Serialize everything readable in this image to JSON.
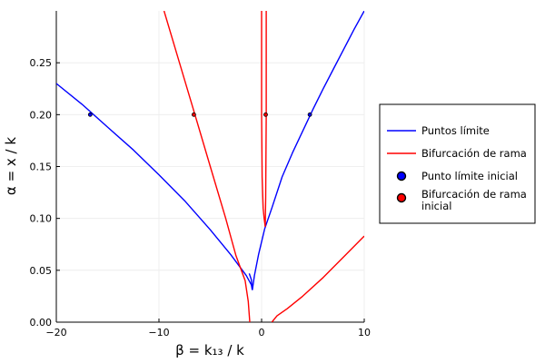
{
  "chart_data": {
    "type": "line",
    "title": "",
    "xlabel": "β = k₁₃ / k",
    "ylabel": "α = x / k",
    "xlim": [
      -20,
      10
    ],
    "ylim": [
      0,
      0.3
    ],
    "xticks": [
      -20,
      -10,
      0,
      10
    ],
    "xtick_labels": [
      "−20",
      "−10",
      "0",
      "10"
    ],
    "yticks": [
      0.0,
      0.05,
      0.1,
      0.15,
      0.2,
      0.25
    ],
    "ytick_labels": [
      "0.00",
      "0.05",
      "0.10",
      "0.15",
      "0.20",
      "0.25"
    ],
    "grid": true,
    "legend_position": "right",
    "series": [
      {
        "name": "Puntos límite",
        "kind": "line",
        "color": "#0000ff",
        "segments": [
          [
            [
              -20,
              0.23
            ],
            [
              -17.5,
              0.21
            ],
            [
              -15,
              0.188
            ],
            [
              -12.5,
              0.166
            ],
            [
              -10,
              0.142
            ],
            [
              -7.5,
              0.117
            ],
            [
              -5,
              0.089
            ],
            [
              -3,
              0.065
            ],
            [
              -1.5,
              0.045
            ],
            [
              -1,
              0.036
            ],
            [
              -0.9,
              0.031
            ]
          ],
          [
            [
              -0.9,
              0.031
            ],
            [
              -1.0,
              0.041
            ],
            [
              -1.2,
              0.047
            ]
          ],
          [
            [
              -0.9,
              0.031
            ],
            [
              -0.7,
              0.045
            ],
            [
              -0.3,
              0.065
            ],
            [
              0.3,
              0.09
            ],
            [
              1,
              0.11
            ],
            [
              2,
              0.14
            ],
            [
              3,
              0.163
            ],
            [
              4,
              0.184
            ],
            [
              5,
              0.205
            ],
            [
              6,
              0.225
            ],
            [
              7,
              0.244
            ],
            [
              8,
              0.263
            ],
            [
              9,
              0.282
            ],
            [
              10,
              0.3
            ]
          ]
        ]
      },
      {
        "name": "Bifurcación de rama",
        "kind": "line",
        "color": "#ff0000",
        "segments": [
          [
            [
              -9.5,
              0.3
            ],
            [
              -8.0,
              0.25
            ],
            [
              -6.5,
              0.2
            ],
            [
              -5.0,
              0.15
            ],
            [
              -3.5,
              0.1
            ],
            [
              -2.5,
              0.064
            ],
            [
              -1.6,
              0.04
            ],
            [
              -1.3,
              0.02
            ],
            [
              -1.15,
              0.0
            ]
          ],
          [
            [
              0.0,
              0.3
            ],
            [
              0.0,
              0.2
            ],
            [
              0.05,
              0.14
            ],
            [
              0.15,
              0.11
            ],
            [
              0.25,
              0.1
            ],
            [
              0.35,
              0.092
            ]
          ],
          [
            [
              0.35,
              0.092
            ],
            [
              0.4,
              0.12
            ],
            [
              0.45,
              0.2
            ],
            [
              0.45,
              0.3
            ]
          ],
          [
            [
              1.0,
              0.0
            ],
            [
              1.5,
              0.006
            ],
            [
              2.5,
              0.013
            ],
            [
              4,
              0.025
            ],
            [
              6,
              0.043
            ],
            [
              8,
              0.063
            ],
            [
              10,
              0.083
            ]
          ]
        ]
      },
      {
        "name": "Punto límite inicial",
        "kind": "marker",
        "color": "#0000ff",
        "points": [
          [
            -16.7,
            0.2
          ],
          [
            4.7,
            0.2
          ]
        ]
      },
      {
        "name": "Bifurcación de rama inicial",
        "kind": "marker",
        "color": "#ff0000",
        "points": [
          [
            -6.6,
            0.2
          ],
          [
            0.4,
            0.2
          ]
        ]
      }
    ]
  },
  "legend": {
    "items": [
      {
        "label": "Puntos límite",
        "symbol": "line",
        "color": "#0000ff"
      },
      {
        "label": "Bifurcación de rama",
        "symbol": "line",
        "color": "#ff0000"
      },
      {
        "label": "Punto límite inicial",
        "symbol": "marker",
        "color": "#0000ff"
      },
      {
        "label_lines": [
          "Bifurcación de rama",
          "inicial"
        ],
        "symbol": "marker",
        "color": "#ff0000"
      }
    ]
  }
}
